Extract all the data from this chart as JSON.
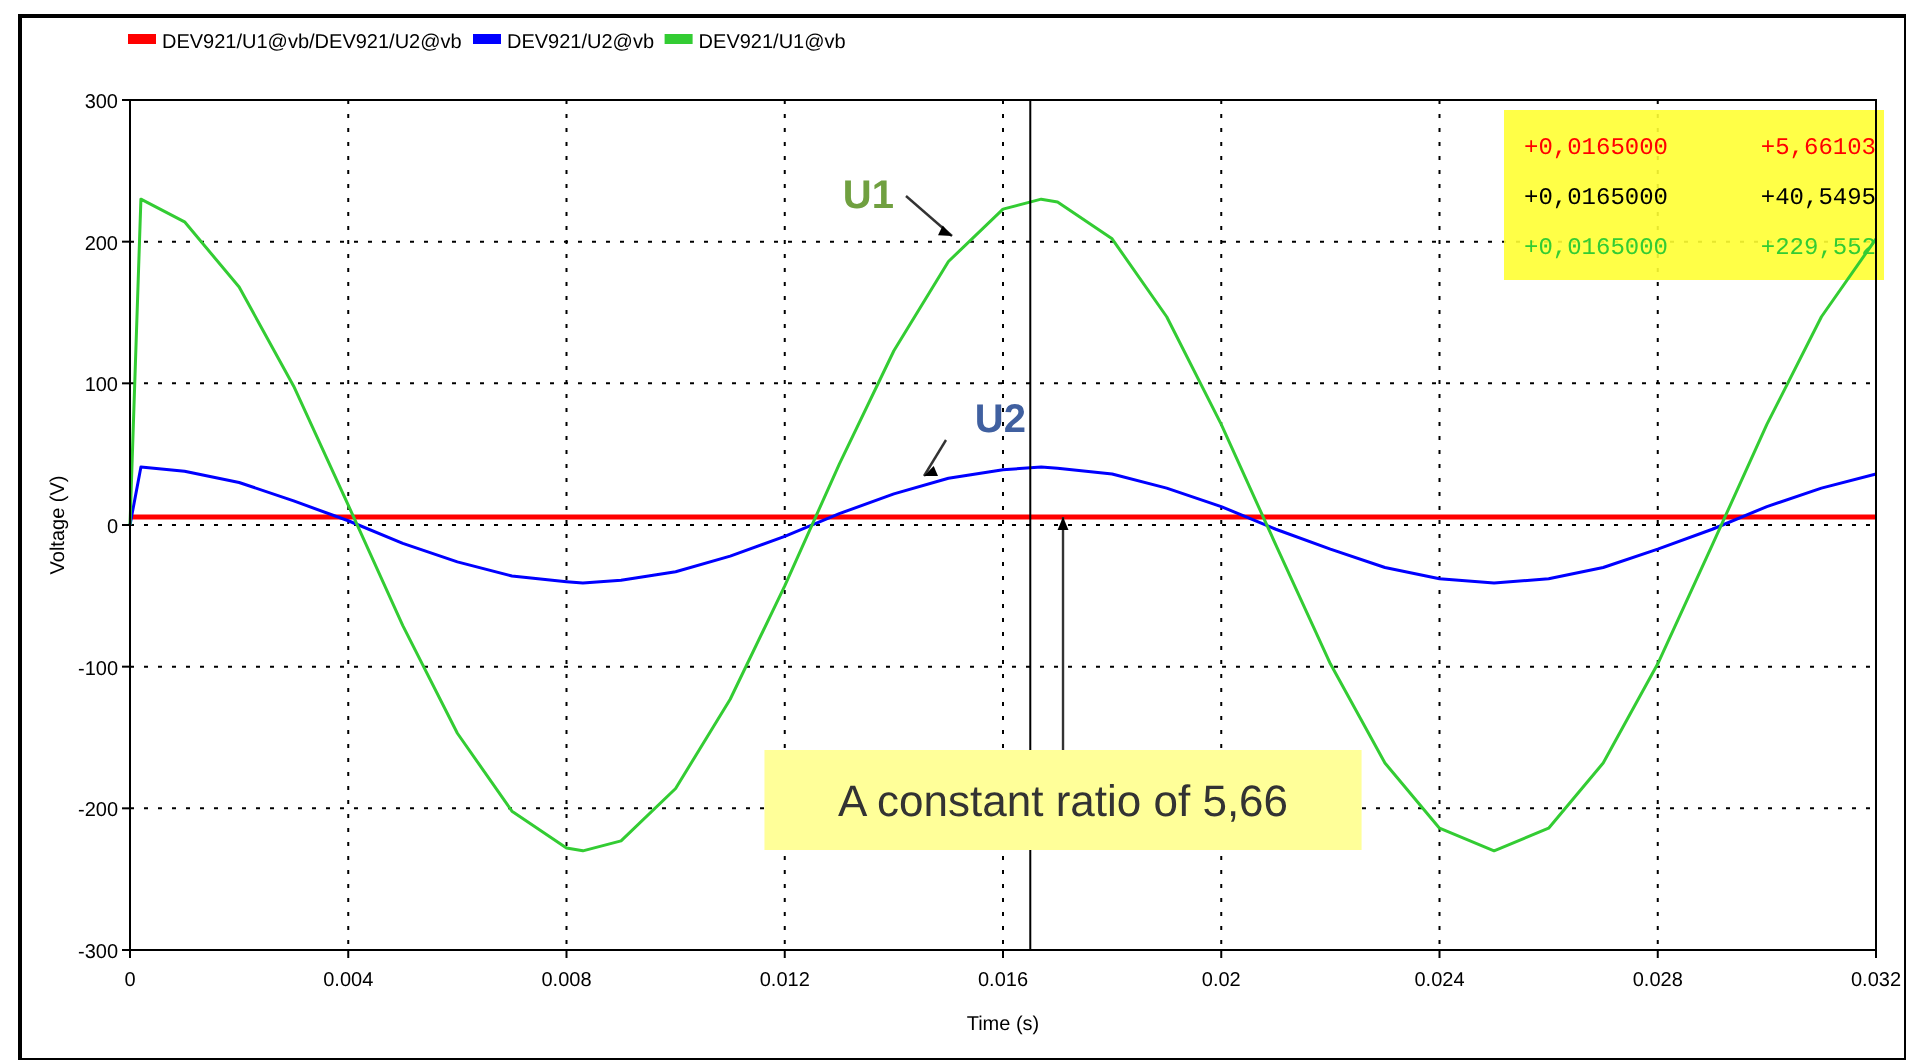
{
  "chart_data": {
    "type": "line",
    "xlabel": "Time (s)",
    "ylabel": "Voltage (V)",
    "xlim": [
      0,
      0.032
    ],
    "ylim": [
      -300,
      300
    ],
    "xticks": [
      0,
      0.004,
      0.008,
      0.012,
      0.016,
      0.02,
      0.024,
      0.028,
      0.032
    ],
    "yticks": [
      -300,
      -200,
      -100,
      0,
      100,
      200,
      300
    ],
    "grid": true,
    "legend": "top left",
    "marker": "none",
    "line_style": "solid",
    "series": [
      {
        "name": "DEV921/U1@vb/DEV921/U2@vb",
        "color": "#ff0000",
        "x": [
          0,
          0.032
        ],
        "values": [
          5.66,
          5.66
        ]
      },
      {
        "name": "DEV921/U2@vb",
        "color": "#0000ff",
        "x": [
          0,
          0.0002,
          0.001,
          0.002,
          0.003,
          0.004,
          0.005,
          0.006,
          0.007,
          0.008,
          0.0083,
          0.009,
          0.01,
          0.011,
          0.012,
          0.013,
          0.014,
          0.015,
          0.016,
          0.0167,
          0.017,
          0.018,
          0.019,
          0.02,
          0.021,
          0.022,
          0.023,
          0.024,
          0.025,
          0.026,
          0.027,
          0.028,
          0.029,
          0.03,
          0.031,
          0.032
        ],
        "values": [
          0,
          41,
          38,
          30,
          17,
          3,
          -13,
          -26,
          -36,
          -40,
          -41,
          -39,
          -33,
          -22,
          -8,
          8,
          22,
          33,
          39,
          41,
          40,
          36,
          26,
          13,
          -3,
          -17,
          -30,
          -38,
          -41,
          -38,
          -30,
          -17,
          -3,
          13,
          26,
          36
        ]
      },
      {
        "name": "DEV921/U1@vb",
        "color": "#33cc33",
        "x": [
          0,
          0.0002,
          0.001,
          0.002,
          0.003,
          0.004,
          0.005,
          0.006,
          0.007,
          0.008,
          0.0083,
          0.009,
          0.01,
          0.011,
          0.012,
          0.013,
          0.014,
          0.015,
          0.016,
          0.0167,
          0.017,
          0.018,
          0.019,
          0.02,
          0.021,
          0.022,
          0.023,
          0.024,
          0.025,
          0.026,
          0.027,
          0.028,
          0.029,
          0.03,
          0.031,
          0.032
        ],
        "values": [
          0,
          230,
          214,
          168,
          98,
          14,
          -71,
          -147,
          -202,
          -228,
          -230,
          -223,
          -186,
          -123,
          -43,
          43,
          123,
          186,
          223,
          230,
          228,
          202,
          147,
          71,
          -14,
          -98,
          -168,
          -214,
          -230,
          -214,
          -168,
          -98,
          -14,
          71,
          147,
          202
        ]
      }
    ],
    "ref_lines": [
      {
        "axis": "x",
        "value": 0.0165,
        "color": "#000000"
      }
    ],
    "annotations": [
      "U1",
      "U2",
      {
        "text": "A constant ratio of 5,66",
        "x": 0.0171,
        "y": 5.66
      },
      "+0,0165000",
      "+5,66103",
      "+0,0165000",
      "+40,5495",
      "+0,0165000",
      "+229,552"
    ]
  }
}
